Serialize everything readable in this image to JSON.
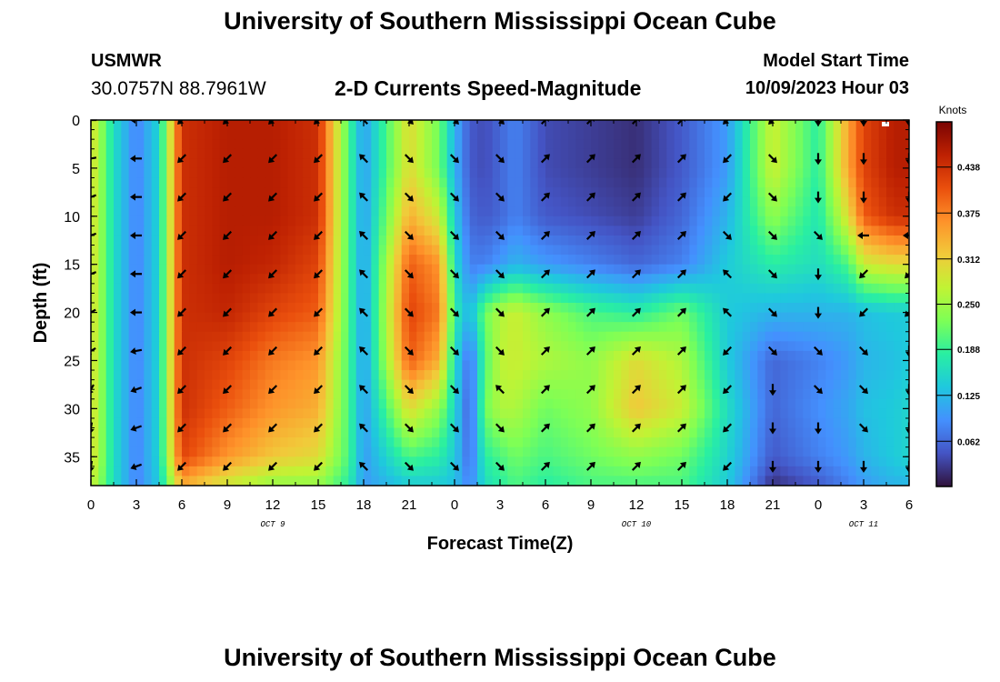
{
  "header": {
    "title": "University of Southern Mississippi Ocean Cube",
    "station": "USMWR",
    "coordinates": "30.0757N  88.7961W",
    "subtitle": "2-D Currents Speed-Magnitude",
    "model_start_label": "Model Start Time",
    "model_start_value": "10/09/2023 Hour 03"
  },
  "footer": {
    "title": "University of Southern Mississippi Ocean Cube"
  },
  "chart_data": {
    "type": "heatmap",
    "title": "2-D Currents Speed-Magnitude",
    "xlabel": "Forecast Time(Z)",
    "ylabel": "Depth (ft)",
    "x_ticks": [
      "0",
      "3",
      "6",
      "9",
      "12",
      "15",
      "18",
      "21",
      "0",
      "3",
      "6",
      "9",
      "12",
      "15",
      "18",
      "21",
      "0",
      "3",
      "6"
    ],
    "x_range_hours": [
      0,
      54
    ],
    "date_labels": [
      {
        "label": "OCT 9",
        "hour": 12
      },
      {
        "label": "OCT 10",
        "hour": 36
      },
      {
        "label": "OCT 11",
        "hour": 51
      }
    ],
    "y_ticks": [
      "0",
      "5",
      "10",
      "15",
      "20",
      "25",
      "30",
      "35"
    ],
    "ylim": [
      38,
      0
    ],
    "colorbar": {
      "label": "Knots",
      "ticks": [
        "0.438",
        "0.375",
        "0.312",
        "0.250",
        "0.188",
        "0.125",
        "0.062"
      ],
      "range": [
        0,
        0.5
      ],
      "colors": [
        "#30123b",
        "#4454c4",
        "#4490fe",
        "#1fc8de",
        "#29efa2",
        "#7dff56",
        "#c1f334",
        "#f1ca3a",
        "#fe922a",
        "#ea4f0d",
        "#be2102",
        "#7a0403"
      ]
    },
    "depths_ft": [
      0,
      5,
      10,
      15,
      20,
      25,
      30,
      35,
      38
    ],
    "hours": [
      0,
      1.5,
      3,
      4.5,
      6,
      9,
      12,
      15,
      17,
      18,
      21,
      23,
      24,
      25,
      26,
      27,
      28,
      30,
      33,
      36,
      39,
      42,
      45,
      48,
      50,
      51,
      53,
      54
    ],
    "speed_knots": [
      [
        0.3,
        0.16,
        0.08,
        0.15,
        0.44,
        0.46,
        0.46,
        0.44,
        0.2,
        0.1,
        0.3,
        0.22,
        0.12,
        0.05,
        0.04,
        0.06,
        0.08,
        0.04,
        0.03,
        0.02,
        0.05,
        0.1,
        0.28,
        0.18,
        0.35,
        0.42,
        0.46,
        0.46
      ],
      [
        0.3,
        0.16,
        0.08,
        0.15,
        0.44,
        0.46,
        0.46,
        0.44,
        0.2,
        0.1,
        0.3,
        0.22,
        0.12,
        0.05,
        0.04,
        0.06,
        0.08,
        0.04,
        0.03,
        0.02,
        0.05,
        0.1,
        0.28,
        0.18,
        0.35,
        0.42,
        0.46,
        0.46
      ],
      [
        0.3,
        0.16,
        0.08,
        0.15,
        0.44,
        0.46,
        0.46,
        0.44,
        0.2,
        0.1,
        0.34,
        0.28,
        0.14,
        0.06,
        0.05,
        0.06,
        0.08,
        0.05,
        0.04,
        0.03,
        0.06,
        0.12,
        0.24,
        0.17,
        0.3,
        0.4,
        0.44,
        0.44
      ],
      [
        0.3,
        0.16,
        0.08,
        0.15,
        0.44,
        0.46,
        0.45,
        0.42,
        0.2,
        0.1,
        0.4,
        0.36,
        0.16,
        0.08,
        0.08,
        0.1,
        0.12,
        0.1,
        0.08,
        0.06,
        0.08,
        0.14,
        0.18,
        0.16,
        0.2,
        0.28,
        0.3,
        0.3
      ],
      [
        0.3,
        0.16,
        0.08,
        0.15,
        0.44,
        0.45,
        0.42,
        0.4,
        0.2,
        0.1,
        0.42,
        0.38,
        0.18,
        0.12,
        0.22,
        0.26,
        0.28,
        0.24,
        0.2,
        0.18,
        0.22,
        0.14,
        0.12,
        0.12,
        0.12,
        0.13,
        0.14,
        0.14
      ],
      [
        0.3,
        0.16,
        0.08,
        0.15,
        0.44,
        0.42,
        0.38,
        0.36,
        0.2,
        0.1,
        0.4,
        0.34,
        0.16,
        0.06,
        0.2,
        0.27,
        0.28,
        0.26,
        0.24,
        0.3,
        0.26,
        0.14,
        0.06,
        0.08,
        0.1,
        0.12,
        0.13,
        0.14
      ],
      [
        0.3,
        0.16,
        0.08,
        0.15,
        0.44,
        0.4,
        0.36,
        0.34,
        0.2,
        0.1,
        0.3,
        0.24,
        0.15,
        0.05,
        0.22,
        0.26,
        0.26,
        0.22,
        0.24,
        0.32,
        0.28,
        0.16,
        0.06,
        0.09,
        0.11,
        0.13,
        0.14,
        0.15
      ],
      [
        0.3,
        0.16,
        0.08,
        0.15,
        0.42,
        0.36,
        0.32,
        0.3,
        0.2,
        0.1,
        0.2,
        0.18,
        0.14,
        0.06,
        0.18,
        0.2,
        0.22,
        0.2,
        0.22,
        0.24,
        0.22,
        0.15,
        0.05,
        0.08,
        0.1,
        0.12,
        0.14,
        0.15
      ],
      [
        0.28,
        0.16,
        0.08,
        0.14,
        0.34,
        0.28,
        0.24,
        0.24,
        0.18,
        0.1,
        0.14,
        0.14,
        0.13,
        0.08,
        0.16,
        0.18,
        0.2,
        0.18,
        0.2,
        0.2,
        0.2,
        0.14,
        0.02,
        0.05,
        0.08,
        0.1,
        0.12,
        0.12
      ]
    ],
    "vector_hours": [
      0,
      3,
      6,
      9,
      12,
      15,
      18,
      21,
      24,
      27,
      30,
      33,
      36,
      39,
      42,
      45,
      48,
      51,
      54
    ],
    "vector_depths_ft": [
      0,
      4,
      8,
      12,
      16,
      20,
      24,
      28,
      32,
      36
    ],
    "vector_dirs_deg": [
      [
        180,
        180,
        135,
        135,
        135,
        135,
        225,
        45,
        45,
        45,
        315,
        315,
        315,
        315,
        135,
        135,
        90,
        90,
        90
      ],
      [
        170,
        180,
        135,
        135,
        135,
        135,
        225,
        45,
        45,
        45,
        315,
        315,
        315,
        315,
        135,
        45,
        90,
        90,
        90
      ],
      [
        160,
        180,
        135,
        135,
        135,
        135,
        225,
        45,
        45,
        45,
        315,
        315,
        315,
        315,
        135,
        45,
        90,
        90,
        90
      ],
      [
        160,
        180,
        135,
        135,
        135,
        135,
        225,
        45,
        45,
        45,
        315,
        315,
        315,
        315,
        45,
        45,
        45,
        180,
        180
      ],
      [
        160,
        180,
        135,
        135,
        135,
        135,
        225,
        45,
        45,
        45,
        315,
        315,
        315,
        315,
        225,
        45,
        90,
        135,
        135
      ],
      [
        150,
        180,
        135,
        135,
        135,
        135,
        225,
        45,
        45,
        45,
        315,
        315,
        315,
        315,
        225,
        45,
        90,
        135,
        135
      ],
      [
        150,
        170,
        135,
        135,
        135,
        135,
        225,
        45,
        45,
        45,
        315,
        315,
        315,
        315,
        135,
        45,
        45,
        45,
        90
      ],
      [
        120,
        160,
        135,
        135,
        135,
        135,
        225,
        45,
        45,
        225,
        315,
        315,
        315,
        315,
        135,
        90,
        45,
        45,
        90
      ],
      [
        100,
        160,
        135,
        135,
        135,
        135,
        225,
        45,
        45,
        45,
        315,
        315,
        315,
        315,
        135,
        90,
        90,
        45,
        90
      ],
      [
        100,
        160,
        135,
        135,
        135,
        135,
        225,
        45,
        45,
        45,
        315,
        315,
        315,
        315,
        135,
        90,
        90,
        90,
        90
      ]
    ]
  }
}
